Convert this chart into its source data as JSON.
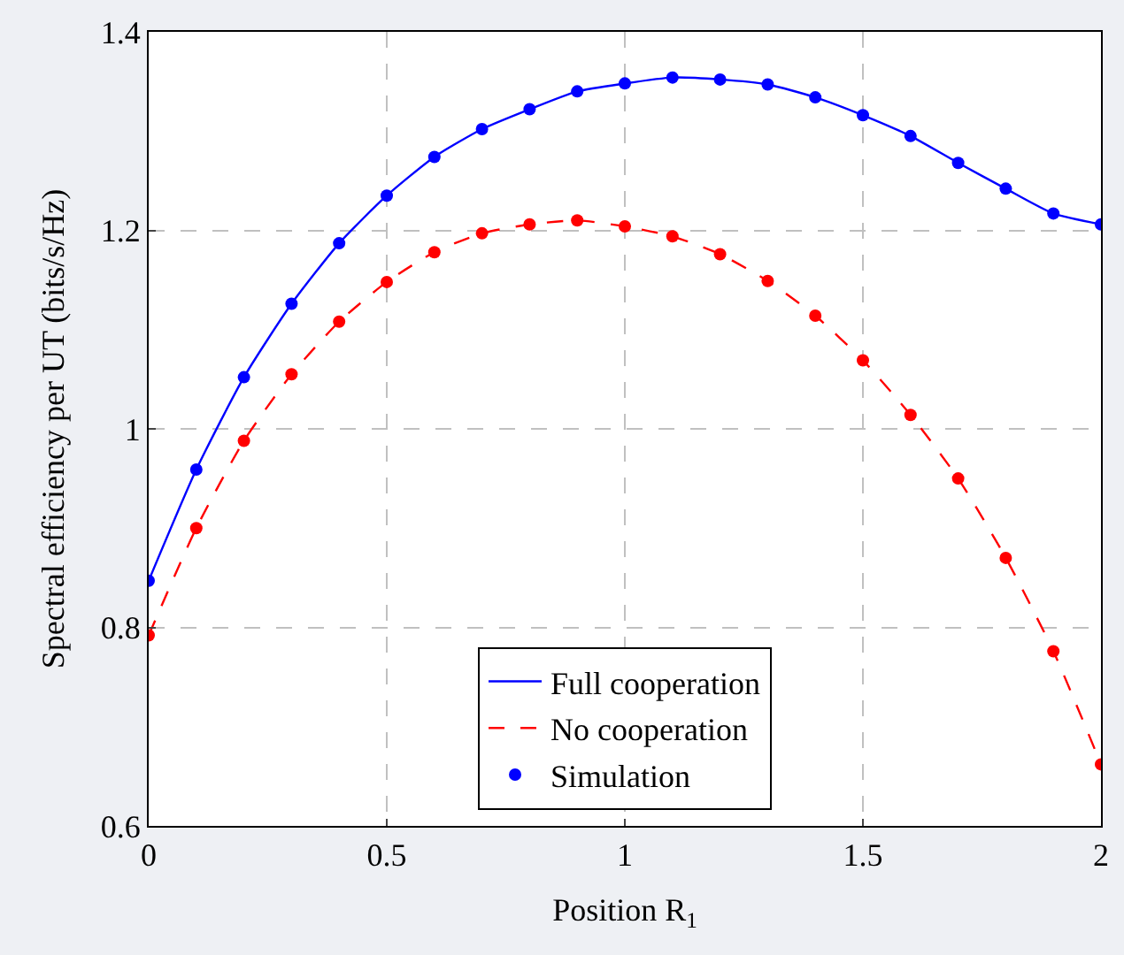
{
  "chart_data": {
    "type": "line",
    "xlabel": "Position R$_{1}$",
    "ylabel": "Spectral efficiency per UT (bits/s/Hz)",
    "x": [
      0,
      0.1,
      0.2,
      0.3,
      0.4,
      0.5,
      0.6,
      0.7,
      0.8,
      0.9,
      1.0,
      1.1,
      1.2,
      1.3,
      1.4,
      1.5,
      1.6,
      1.7,
      1.8,
      1.9,
      2.0
    ],
    "series": [
      {
        "name": "Full cooperation",
        "color": "#0000ff",
        "line_style": "solid",
        "marker": "none",
        "values": [
          0.847,
          0.959,
          1.052,
          1.126,
          1.187,
          1.235,
          1.274,
          1.302,
          1.322,
          1.34,
          1.348,
          1.354,
          1.352,
          1.347,
          1.334,
          1.316,
          1.295,
          1.268,
          1.242,
          1.217,
          1.206
        ]
      },
      {
        "name": "No cooperation",
        "color": "#ff0000",
        "line_style": "dashed",
        "marker": "none",
        "values": [
          0.792,
          0.9,
          0.988,
          1.055,
          1.108,
          1.148,
          1.178,
          1.197,
          1.206,
          1.21,
          1.204,
          1.194,
          1.176,
          1.149,
          1.114,
          1.069,
          1.014,
          0.95,
          0.87,
          0.776,
          0.662
        ]
      },
      {
        "name": "Simulation",
        "type": "scatter",
        "marker": "circle",
        "x": [
          0,
          0.1,
          0.2,
          0.3,
          0.4,
          0.5,
          0.6,
          0.7,
          0.8,
          0.9,
          1.0,
          1.1,
          1.2,
          1.3,
          1.4,
          1.5,
          1.6,
          1.7,
          1.8,
          1.9,
          2.0,
          0,
          0.1,
          0.2,
          0.3,
          0.4,
          0.5,
          0.6,
          0.7,
          0.8,
          0.9,
          1.0,
          1.1,
          1.2,
          1.3,
          1.4,
          1.5,
          1.6,
          1.7,
          1.8,
          1.9,
          2.0
        ],
        "values": [
          0.847,
          0.959,
          1.052,
          1.126,
          1.187,
          1.235,
          1.274,
          1.302,
          1.322,
          1.34,
          1.348,
          1.354,
          1.352,
          1.347,
          1.334,
          1.316,
          1.295,
          1.268,
          1.242,
          1.217,
          1.206,
          0.792,
          0.9,
          0.988,
          1.055,
          1.108,
          1.148,
          1.178,
          1.197,
          1.206,
          1.21,
          1.204,
          1.194,
          1.176,
          1.149,
          1.114,
          1.069,
          1.014,
          0.95,
          0.87,
          0.776,
          0.662
        ],
        "colors": [
          "#0000ff",
          "#0000ff",
          "#0000ff",
          "#0000ff",
          "#0000ff",
          "#0000ff",
          "#0000ff",
          "#0000ff",
          "#0000ff",
          "#0000ff",
          "#0000ff",
          "#0000ff",
          "#0000ff",
          "#0000ff",
          "#0000ff",
          "#0000ff",
          "#0000ff",
          "#0000ff",
          "#0000ff",
          "#0000ff",
          "#0000ff",
          "#ff0000",
          "#ff0000",
          "#ff0000",
          "#ff0000",
          "#ff0000",
          "#ff0000",
          "#ff0000",
          "#ff0000",
          "#ff0000",
          "#ff0000",
          "#ff0000",
          "#ff0000",
          "#ff0000",
          "#ff0000",
          "#ff0000",
          "#ff0000",
          "#ff0000",
          "#ff0000",
          "#ff0000",
          "#ff0000",
          "#ff0000"
        ]
      }
    ],
    "xlim": [
      0,
      2
    ],
    "xticks": [
      0,
      0.5,
      1,
      1.5,
      2
    ],
    "ylim": [
      0.6,
      1.4
    ],
    "yticks": [
      0.6,
      0.8,
      1,
      1.2,
      1.4
    ],
    "grid": true,
    "legend": "bottom"
  }
}
